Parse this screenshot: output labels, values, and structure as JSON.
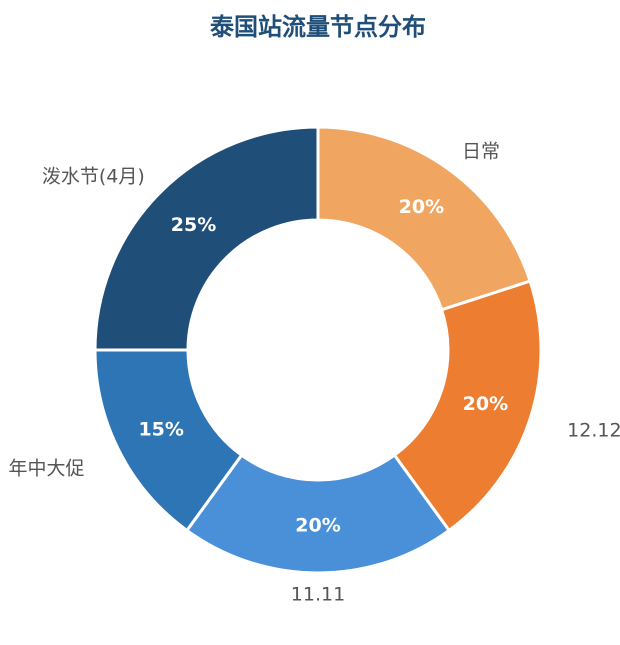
{
  "chart_data": {
    "type": "donut",
    "title": "泰国站流量节点分布",
    "categories": [
      "日常",
      "12.12",
      "11.11",
      "年中大促",
      "泼水节(4月)"
    ],
    "values": [
      20,
      20,
      20,
      15,
      25
    ],
    "value_labels": [
      "20%",
      "20%",
      "20%",
      "15%",
      "25%"
    ],
    "colors": [
      "#f0a561",
      "#ed7d31",
      "#4a90d9",
      "#2e75b6",
      "#1f4e79"
    ]
  }
}
